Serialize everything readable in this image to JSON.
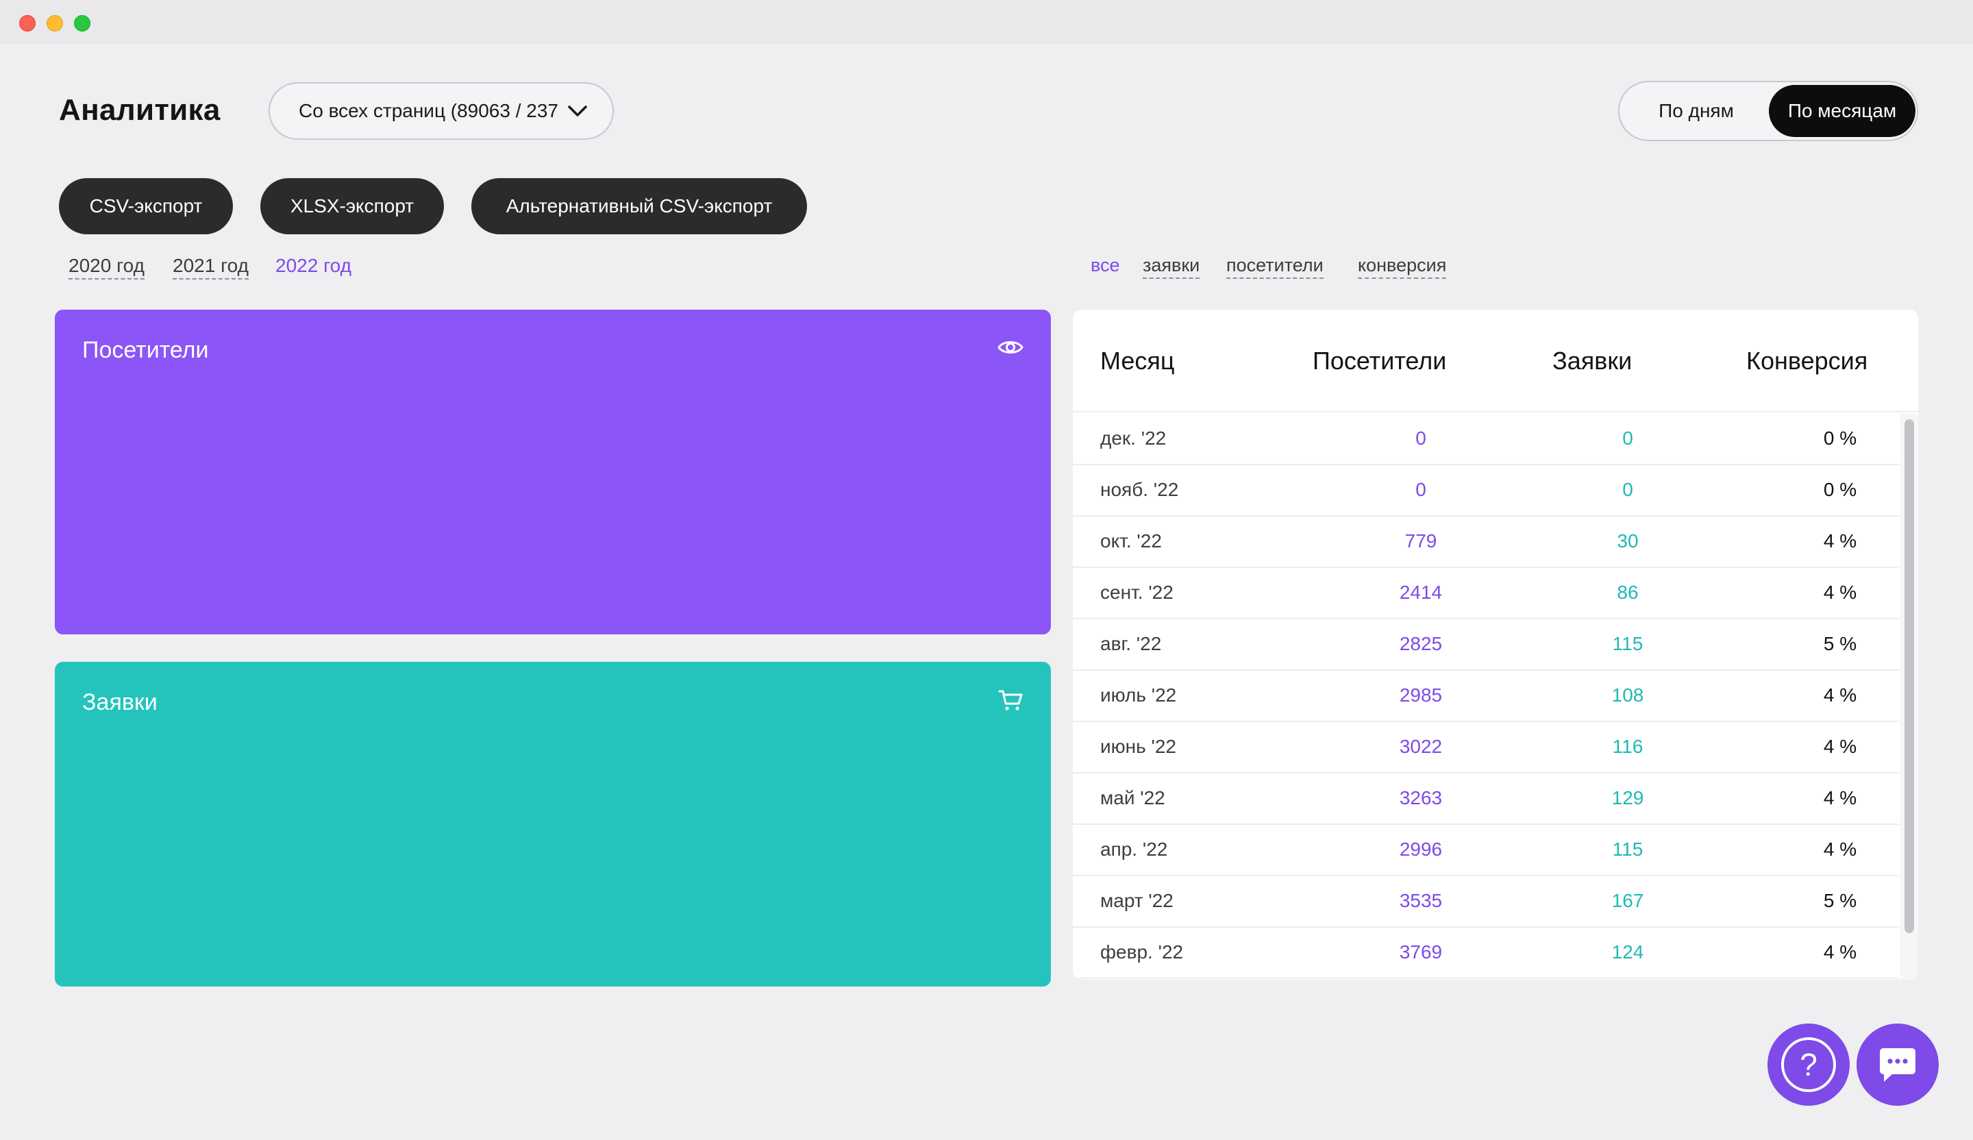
{
  "window": {
    "controls": [
      "close",
      "minimize",
      "zoom"
    ]
  },
  "header": {
    "title": "Аналитика",
    "source_select": {
      "value": "Со всех страниц (89063 / 237",
      "icon": "chevron-down-icon"
    },
    "view_toggle": {
      "days_label": "По дням",
      "months_label": "По месяцам",
      "selected": "months"
    }
  },
  "exports": {
    "csv_label": "CSV-экспорт",
    "xlsx_label": "XLSX-экспорт",
    "alt_csv_label": "Альтернативный CSV-экспорт"
  },
  "years": {
    "items": [
      {
        "label": "2020 год"
      },
      {
        "label": "2021 год"
      },
      {
        "label": "2022 год"
      }
    ],
    "selected": "2022 год"
  },
  "filters": {
    "items": [
      {
        "label": "все"
      },
      {
        "label": "заявки"
      },
      {
        "label": "посетители"
      },
      {
        "label": "конверсия"
      }
    ],
    "selected": "все"
  },
  "cards": {
    "visitors": {
      "title": "Посетители",
      "icon": "eye-icon",
      "color": "#8c55f7"
    },
    "orders": {
      "title": "Заявки",
      "icon": "cart-icon",
      "color": "#24c4bd"
    }
  },
  "table": {
    "headers": {
      "month": "Месяц",
      "visitors": "Посетители",
      "orders": "Заявки",
      "conversion": "Конверсия"
    },
    "rows": [
      {
        "month": "дек. '22",
        "visitors": "0",
        "orders": "0",
        "conversion": "0 %"
      },
      {
        "month": "нояб. '22",
        "visitors": "0",
        "orders": "0",
        "conversion": "0 %"
      },
      {
        "month": "окт. '22",
        "visitors": "779",
        "orders": "30",
        "conversion": "4 %"
      },
      {
        "month": "сент. '22",
        "visitors": "2414",
        "orders": "86",
        "conversion": "4 %"
      },
      {
        "month": "авг. '22",
        "visitors": "2825",
        "orders": "115",
        "conversion": "5 %"
      },
      {
        "month": "июль '22",
        "visitors": "2985",
        "orders": "108",
        "conversion": "4 %"
      },
      {
        "month": "июнь '22",
        "visitors": "3022",
        "orders": "116",
        "conversion": "4 %"
      },
      {
        "month": "май '22",
        "visitors": "3263",
        "orders": "129",
        "conversion": "4 %"
      },
      {
        "month": "апр. '22",
        "visitors": "2996",
        "orders": "115",
        "conversion": "4 %"
      },
      {
        "month": "март '22",
        "visitors": "3535",
        "orders": "167",
        "conversion": "5 %"
      },
      {
        "month": "февр. '22",
        "visitors": "3769",
        "orders": "124",
        "conversion": "4 %"
      }
    ]
  },
  "floating": {
    "help_label": "?",
    "help_icon": "help-icon",
    "chat_icon": "chat-icon"
  },
  "colors": {
    "accent": "#7e4ae8",
    "teal": "#20b9b2",
    "dark_button": "#2b2b2e",
    "background": "#efeef1"
  }
}
